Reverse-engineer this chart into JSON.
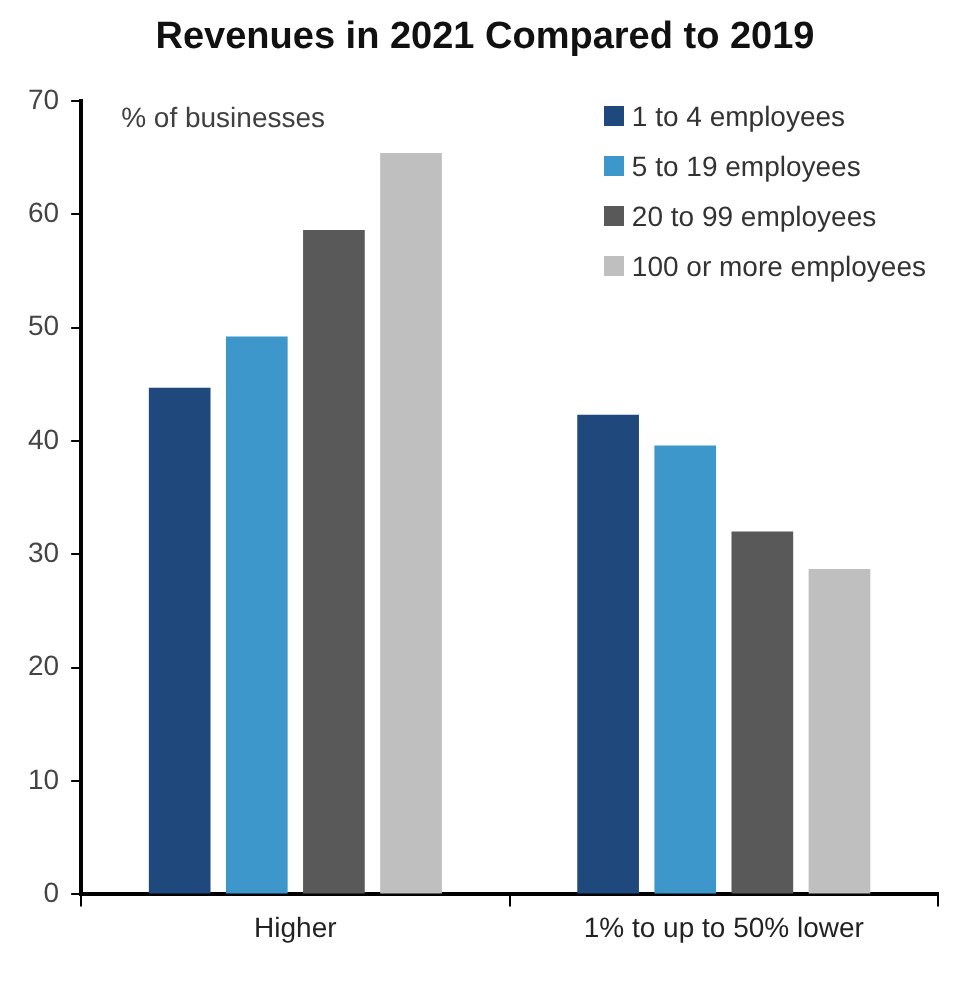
{
  "chart_data": {
    "type": "bar",
    "title": "Revenues in 2021 Compared to 2019",
    "ylabel": "% of businesses",
    "categories": [
      "Higher",
      "1% to up to 50% lower"
    ],
    "series": [
      {
        "name": "1 to 4 employees",
        "color": "#1f497d",
        "values": [
          44.7,
          42.3
        ]
      },
      {
        "name": "5 to 19 employees",
        "color": "#3d97cb",
        "values": [
          49.2,
          39.6
        ]
      },
      {
        "name": "20 to 99 employees",
        "color": "#595959",
        "values": [
          58.6,
          32.0
        ]
      },
      {
        "name": "100 or more employees",
        "color": "#bfbfbf",
        "values": [
          65.4,
          28.7
        ]
      }
    ],
    "ylim": [
      0,
      70
    ],
    "yticks": [
      0,
      10,
      20,
      30,
      40,
      50,
      60,
      70
    ],
    "grid": false,
    "legend": "top right"
  }
}
